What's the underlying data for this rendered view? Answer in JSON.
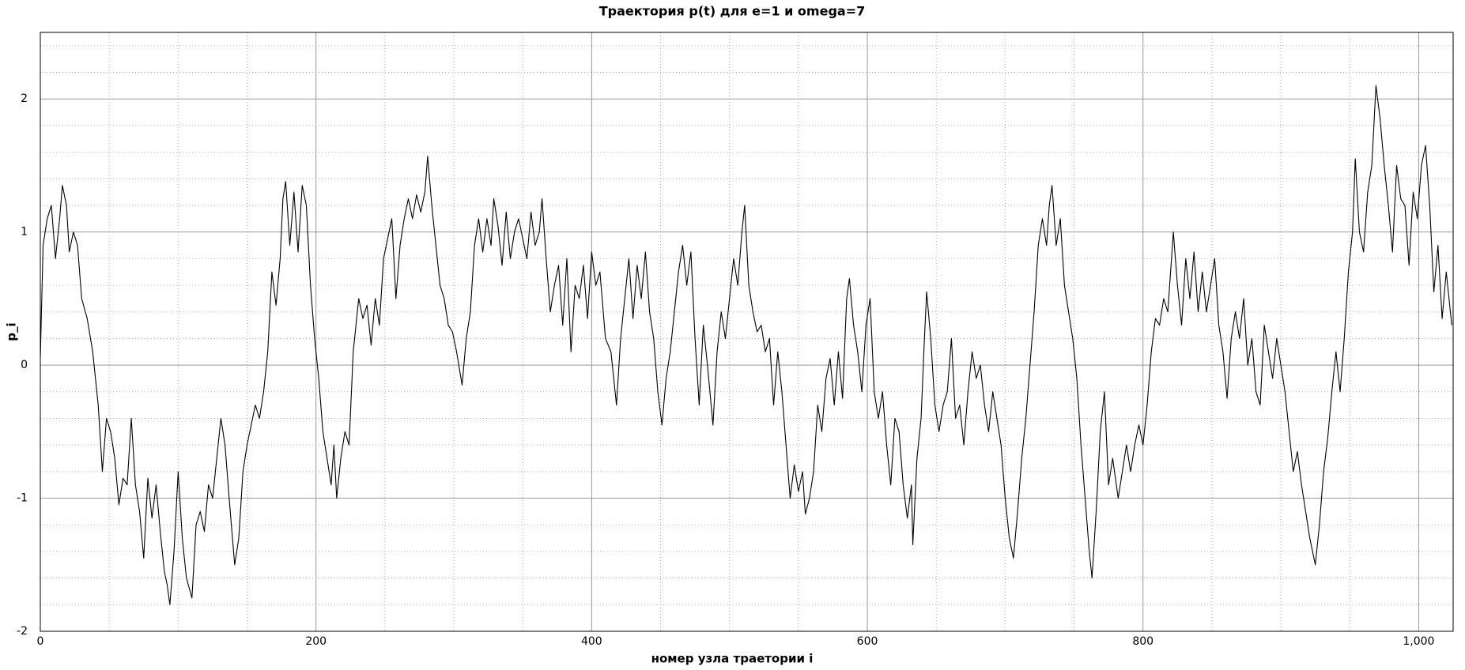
{
  "chart_data": {
    "type": "line",
    "title": "Траектория p(t) для e=1 и omega=7",
    "x_label": "номер узла траетории i",
    "y_label": "p_i",
    "color": "#000000",
    "grid": true,
    "xlim": [
      0,
      1025
    ],
    "ylim": [
      -2,
      2.5
    ],
    "xticks": [
      0,
      200,
      400,
      600,
      800,
      {
        "value": 1000,
        "label": "1,000"
      }
    ],
    "xminorticks": [
      50,
      100,
      150,
      250,
      300,
      350,
      450,
      500,
      550,
      650,
      700,
      750,
      850,
      900,
      950
    ],
    "yticks": [
      -2,
      -1,
      0,
      1,
      2
    ],
    "yminorticks": [
      -1.8,
      -1.6,
      -1.4,
      -1.2,
      -0.8,
      -0.6,
      -0.4,
      -0.2,
      0.2,
      0.4,
      0.6,
      0.8,
      1.2,
      1.4,
      1.6,
      1.8,
      2.2,
      2.4
    ],
    "x": [
      0,
      2,
      5,
      8,
      11,
      14,
      16,
      19,
      21,
      24,
      27,
      30,
      34,
      38,
      42,
      45,
      48,
      51,
      54,
      57,
      60,
      63,
      66,
      69,
      72,
      75,
      78,
      81,
      84,
      87,
      90,
      92,
      94,
      97,
      100,
      103,
      106,
      110,
      113,
      116,
      119,
      122,
      125,
      128,
      131,
      134,
      137,
      141,
      144,
      147,
      150,
      153,
      156,
      159,
      162,
      165,
      168,
      171,
      174,
      176,
      178,
      181,
      184,
      187,
      190,
      193,
      196,
      199,
      202,
      205,
      208,
      211,
      213,
      215,
      218,
      221,
      224,
      227,
      231,
      234,
      237,
      240,
      243,
      246,
      249,
      252,
      255,
      258,
      261,
      264,
      267,
      270,
      273,
      276,
      279,
      281,
      284,
      287,
      290,
      293,
      296,
      299,
      302,
      306,
      309,
      312,
      315,
      318,
      321,
      324,
      327,
      329,
      332,
      335,
      338,
      341,
      344,
      347,
      350,
      353,
      356,
      359,
      362,
      364,
      367,
      370,
      373,
      376,
      379,
      382,
      385,
      388,
      391,
      394,
      397,
      400,
      403,
      406,
      410,
      414,
      418,
      421,
      424,
      427,
      430,
      433,
      436,
      439,
      442,
      445,
      448,
      451,
      454,
      457,
      460,
      463,
      466,
      469,
      472,
      475,
      478,
      481,
      484,
      488,
      491,
      494,
      497,
      500,
      503,
      506,
      509,
      511,
      514,
      517,
      520,
      523,
      526,
      529,
      532,
      535,
      538,
      541,
      544,
      547,
      550,
      553,
      555,
      558,
      561,
      564,
      567,
      570,
      573,
      576,
      579,
      582,
      585,
      587,
      590,
      593,
      596,
      599,
      602,
      605,
      608,
      611,
      614,
      617,
      620,
      623,
      626,
      629,
      632,
      633,
      636,
      639,
      641,
      643,
      646,
      649,
      652,
      655,
      658,
      661,
      664,
      667,
      670,
      673,
      676,
      679,
      682,
      685,
      688,
      691,
      694,
      697,
      700,
      703,
      706,
      709,
      712,
      715,
      718,
      721,
      724,
      727,
      730,
      732,
      734,
      737,
      740,
      743,
      746,
      749,
      752,
      755,
      758,
      761,
      763,
      766,
      769,
      772,
      775,
      778,
      782,
      785,
      788,
      791,
      794,
      797,
      800,
      803,
      806,
      809,
      812,
      815,
      818,
      822,
      825,
      828,
      831,
      834,
      837,
      840,
      843,
      846,
      849,
      852,
      855,
      858,
      861,
      864,
      867,
      870,
      873,
      876,
      879,
      882,
      885,
      888,
      891,
      894,
      897,
      900,
      903,
      906,
      909,
      912,
      915,
      918,
      921,
      925,
      928,
      931,
      934,
      937,
      940,
      943,
      946,
      949,
      952,
      954,
      957,
      960,
      963,
      966,
      969,
      972,
      975,
      978,
      981,
      984,
      987,
      990,
      993,
      996,
      999,
      1002,
      1005,
      1008,
      1011,
      1014,
      1017,
      1020,
      1022,
      1024
    ],
    "values": [
      0.05,
      0.9,
      1.1,
      1.2,
      0.8,
      1.1,
      1.35,
      1.2,
      0.85,
      1.0,
      0.9,
      0.5,
      0.35,
      0.1,
      -0.3,
      -0.8,
      -0.4,
      -0.5,
      -0.7,
      -1.05,
      -0.85,
      -0.9,
      -0.4,
      -0.9,
      -1.1,
      -1.45,
      -0.85,
      -1.15,
      -0.9,
      -1.25,
      -1.55,
      -1.65,
      -1.8,
      -1.4,
      -0.8,
      -1.3,
      -1.6,
      -1.75,
      -1.2,
      -1.1,
      -1.25,
      -0.9,
      -1.0,
      -0.7,
      -0.4,
      -0.6,
      -1.0,
      -1.5,
      -1.3,
      -0.8,
      -0.6,
      -0.45,
      -0.3,
      -0.4,
      -0.2,
      0.1,
      0.7,
      0.45,
      0.8,
      1.25,
      1.38,
      0.9,
      1.3,
      0.85,
      1.35,
      1.2,
      0.6,
      0.2,
      -0.1,
      -0.5,
      -0.7,
      -0.9,
      -0.6,
      -1.0,
      -0.7,
      -0.5,
      -0.6,
      0.1,
      0.5,
      0.35,
      0.45,
      0.15,
      0.5,
      0.3,
      0.8,
      0.95,
      1.1,
      0.5,
      0.9,
      1.1,
      1.25,
      1.1,
      1.28,
      1.15,
      1.3,
      1.57,
      1.2,
      0.9,
      0.6,
      0.5,
      0.3,
      0.25,
      0.1,
      -0.15,
      0.2,
      0.4,
      0.9,
      1.1,
      0.85,
      1.1,
      0.9,
      1.25,
      1.05,
      0.75,
      1.15,
      0.8,
      1.0,
      1.1,
      0.95,
      0.8,
      1.15,
      0.9,
      1.0,
      1.25,
      0.8,
      0.4,
      0.6,
      0.75,
      0.3,
      0.8,
      0.1,
      0.6,
      0.5,
      0.75,
      0.35,
      0.85,
      0.6,
      0.7,
      0.2,
      0.1,
      -0.3,
      0.2,
      0.5,
      0.8,
      0.35,
      0.75,
      0.5,
      0.85,
      0.4,
      0.2,
      -0.2,
      -0.45,
      -0.1,
      0.1,
      0.4,
      0.7,
      0.9,
      0.6,
      0.85,
      0.2,
      -0.3,
      0.3,
      0.0,
      -0.45,
      0.1,
      0.4,
      0.2,
      0.5,
      0.8,
      0.6,
      1.0,
      1.2,
      0.6,
      0.4,
      0.25,
      0.3,
      0.1,
      0.2,
      -0.3,
      0.1,
      -0.2,
      -0.6,
      -1.0,
      -0.75,
      -0.95,
      -0.8,
      -1.12,
      -1.0,
      -0.8,
      -0.3,
      -0.5,
      -0.1,
      0.05,
      -0.3,
      0.1,
      -0.25,
      0.5,
      0.65,
      0.3,
      0.1,
      -0.2,
      0.3,
      0.5,
      -0.2,
      -0.4,
      -0.2,
      -0.6,
      -0.9,
      -0.4,
      -0.5,
      -0.9,
      -1.15,
      -0.9,
      -1.35,
      -0.7,
      -0.4,
      0.1,
      0.55,
      0.2,
      -0.3,
      -0.5,
      -0.3,
      -0.2,
      0.2,
      -0.4,
      -0.3,
      -0.6,
      -0.2,
      0.1,
      -0.1,
      0.0,
      -0.3,
      -0.5,
      -0.2,
      -0.4,
      -0.6,
      -1.0,
      -1.3,
      -1.45,
      -1.1,
      -0.7,
      -0.4,
      0.0,
      0.4,
      0.9,
      1.1,
      0.9,
      1.2,
      1.35,
      0.9,
      1.1,
      0.6,
      0.4,
      0.2,
      -0.1,
      -0.6,
      -1.0,
      -1.4,
      -1.6,
      -1.1,
      -0.5,
      -0.2,
      -0.9,
      -0.7,
      -1.0,
      -0.8,
      -0.6,
      -0.8,
      -0.6,
      -0.45,
      -0.6,
      -0.3,
      0.1,
      0.35,
      0.3,
      0.5,
      0.4,
      1.0,
      0.6,
      0.3,
      0.8,
      0.5,
      0.85,
      0.4,
      0.7,
      0.4,
      0.6,
      0.8,
      0.3,
      0.1,
      -0.25,
      0.2,
      0.4,
      0.2,
      0.5,
      0.0,
      0.2,
      -0.2,
      -0.3,
      0.3,
      0.1,
      -0.1,
      0.2,
      0.0,
      -0.2,
      -0.5,
      -0.8,
      -0.65,
      -0.9,
      -1.1,
      -1.3,
      -1.5,
      -1.2,
      -0.8,
      -0.55,
      -0.2,
      0.1,
      -0.2,
      0.2,
      0.7,
      1.0,
      1.55,
      1.0,
      0.85,
      1.3,
      1.5,
      2.1,
      1.85,
      1.5,
      1.2,
      0.85,
      1.5,
      1.25,
      1.2,
      0.75,
      1.3,
      1.1,
      1.5,
      1.65,
      1.2,
      0.55,
      0.9,
      0.35,
      0.7,
      0.5,
      0.3
    ]
  }
}
